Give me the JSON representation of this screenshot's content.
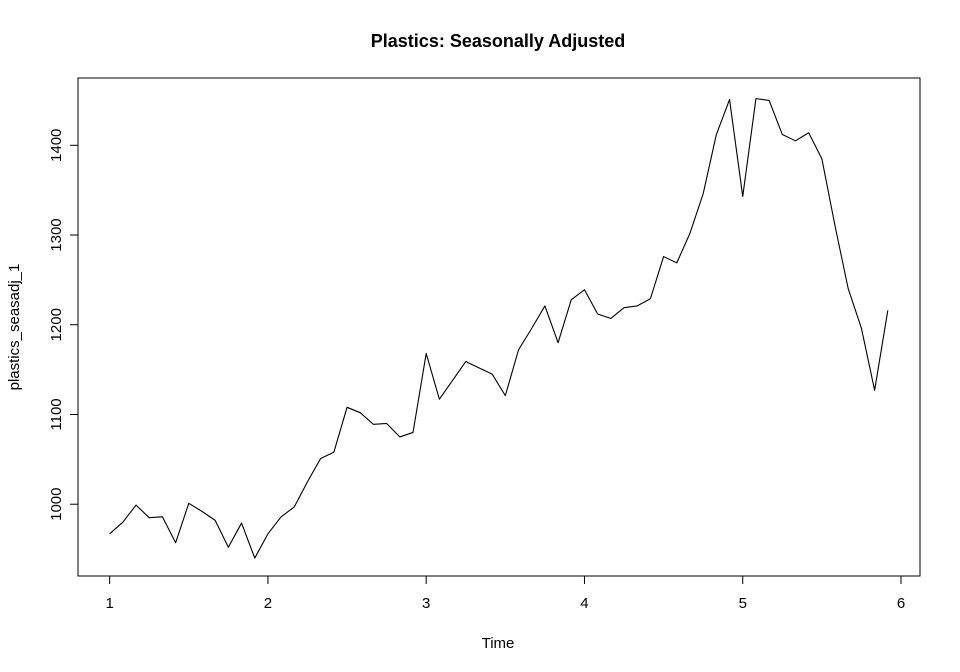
{
  "chart_data": {
    "type": "line",
    "title": "Plastics: Seasonally Adjusted",
    "xlabel": "Time",
    "ylabel": "plastics_seasadj_1",
    "xlim": [
      0.8,
      6.12
    ],
    "ylim": [
      920,
      1475
    ],
    "x_ticks": [
      1,
      2,
      3,
      4,
      5,
      6
    ],
    "y_ticks": [
      1000,
      1100,
      1200,
      1300,
      1400
    ],
    "grid": false,
    "line_color": "#000000",
    "series": [
      {
        "x_start": 1,
        "frequency": 12,
        "values": [
          967,
          980,
          999,
          985,
          986,
          957,
          1001,
          992,
          982,
          952,
          979,
          940,
          967,
          986,
          997,
          1025,
          1051,
          1058,
          1108,
          1102,
          1089,
          1090,
          1075,
          1080,
          1168,
          1117,
          1138,
          1159,
          1152,
          1145,
          1121,
          1172,
          1196,
          1221,
          1180,
          1228,
          1239,
          1212,
          1207,
          1219,
          1221,
          1229,
          1276,
          1269,
          1302,
          1346,
          1412,
          1451,
          1343,
          1452,
          1450,
          1412,
          1405,
          1414,
          1385,
          1310,
          1240,
          1196,
          1127,
          1216
        ]
      }
    ]
  }
}
